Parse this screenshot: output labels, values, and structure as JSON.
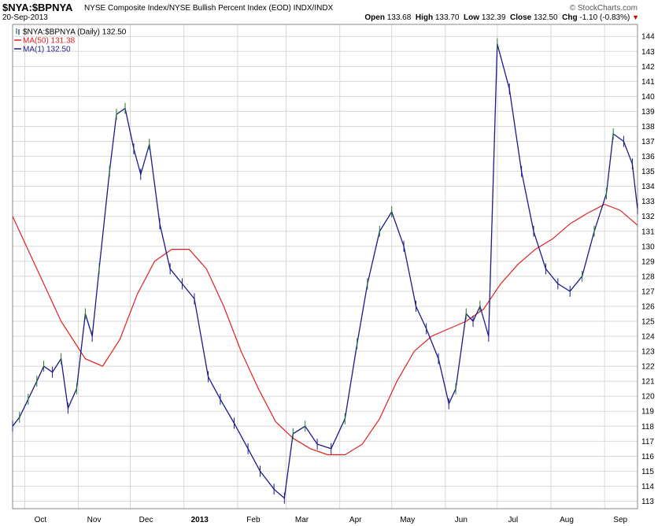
{
  "header": {
    "symbol": "$NYA:$BPNYA",
    "description": "NYSE Composite Index/NYSE Bullish Percent Index (EOD)  INDX/INDX",
    "date": "20-Sep-2013",
    "brand": "© StockCharts.com",
    "open_label": "Open",
    "open": "133.68",
    "high_label": "High",
    "high": "133.70",
    "low_label": "Low",
    "low": "132.39",
    "close_label": "Close",
    "close": "132.50",
    "chg_label": "Chg",
    "chg": "-1.10 (-0.83%)"
  },
  "colors": {
    "price": "#1a1a8c",
    "price_up": "#1e7a1e",
    "ma50": "#e02020",
    "grid": "#d8d8d8"
  },
  "chart_data": {
    "type": "line",
    "legend": [
      {
        "label": "$NYA:$BPNYA (Daily) 132.50",
        "color": "#1a1a8c",
        "icon": "ohlc-bar-icon"
      },
      {
        "label": "MA(50) 131.38",
        "color": "#e02020",
        "icon": "line-icon"
      },
      {
        "label": "MA(1) 132.50",
        "color": "#1a1a8c",
        "icon": "line-icon"
      }
    ],
    "legend_position": "top-left",
    "grid": true,
    "ylim": [
      112.5,
      144.8
    ],
    "y_ticks": [
      113,
      114,
      115,
      116,
      117,
      118,
      119,
      120,
      121,
      122,
      123,
      124,
      125,
      126,
      127,
      128,
      129,
      130,
      131,
      132,
      133,
      134,
      135,
      136,
      137,
      138,
      139,
      140,
      141,
      142,
      143,
      144
    ],
    "x_range": [
      "2012-09-24",
      "2013-09-20"
    ],
    "x_ticks": [
      {
        "label": "Oct",
        "date": "2012-10-01"
      },
      {
        "label": "Nov",
        "date": "2012-11-01"
      },
      {
        "label": "Dec",
        "date": "2012-12-01"
      },
      {
        "label": "2013",
        "date": "2013-01-01"
      },
      {
        "label": "Feb",
        "date": "2013-02-01"
      },
      {
        "label": "Mar",
        "date": "2013-03-01"
      },
      {
        "label": "Apr",
        "date": "2013-04-01"
      },
      {
        "label": "May",
        "date": "2013-05-01"
      },
      {
        "label": "Jun",
        "date": "2013-06-01"
      },
      {
        "label": "Jul",
        "date": "2013-07-01"
      },
      {
        "label": "Aug",
        "date": "2013-08-01"
      },
      {
        "label": "Sep",
        "date": "2013-09-01"
      }
    ],
    "series": [
      {
        "name": "MA(1)",
        "x": [
          "2012-09-24",
          "2012-09-28",
          "2012-10-03",
          "2012-10-08",
          "2012-10-12",
          "2012-10-17",
          "2012-10-22",
          "2012-10-26",
          "2012-10-31",
          "2012-11-05",
          "2012-11-09",
          "2012-11-13",
          "2012-11-19",
          "2012-11-23",
          "2012-11-28",
          "2012-12-03",
          "2012-12-07",
          "2012-12-12",
          "2012-12-18",
          "2012-12-24",
          "2012-12-31",
          "2013-01-07",
          "2013-01-15",
          "2013-01-22",
          "2013-01-30",
          "2013-02-07",
          "2013-02-14",
          "2013-02-22",
          "2013-02-28",
          "2013-03-05",
          "2013-03-12",
          "2013-03-19",
          "2013-03-27",
          "2013-04-04",
          "2013-04-11",
          "2013-04-17",
          "2013-04-24",
          "2013-05-01",
          "2013-05-08",
          "2013-05-15",
          "2013-05-21",
          "2013-05-28",
          "2013-06-03",
          "2013-06-07",
          "2013-06-13",
          "2013-06-17",
          "2013-06-21",
          "2013-06-26",
          "2013-07-01",
          "2013-07-08",
          "2013-07-15",
          "2013-07-22",
          "2013-07-29",
          "2013-08-05",
          "2013-08-12",
          "2013-08-19",
          "2013-08-26",
          "2013-09-02",
          "2013-09-06",
          "2013-09-12",
          "2013-09-17",
          "2013-09-20"
        ],
        "values": [
          118.0,
          118.6,
          119.8,
          121.0,
          122.0,
          121.6,
          122.5,
          119.2,
          120.5,
          125.5,
          124.0,
          128.5,
          135.0,
          138.8,
          139.2,
          136.5,
          134.8,
          136.8,
          131.5,
          128.5,
          127.5,
          126.5,
          121.3,
          119.8,
          118.2,
          116.5,
          115.0,
          113.8,
          113.2,
          117.5,
          118.0,
          116.8,
          116.5,
          118.5,
          123.5,
          127.5,
          131.0,
          132.3,
          130.0,
          126.0,
          124.5,
          122.5,
          119.5,
          120.5,
          125.5,
          125.0,
          126.0,
          124.0,
          143.5,
          140.5,
          135.0,
          131.0,
          128.5,
          127.5,
          127.0,
          128.0,
          131.0,
          133.5,
          137.5,
          137.0,
          135.5,
          132.5
        ]
      },
      {
        "name": "MA(50)",
        "x": [
          "2012-09-24",
          "2012-10-08",
          "2012-10-22",
          "2012-11-05",
          "2012-11-15",
          "2012-11-25",
          "2012-12-05",
          "2012-12-15",
          "2012-12-25",
          "2013-01-04",
          "2013-01-14",
          "2013-01-24",
          "2013-02-03",
          "2013-02-13",
          "2013-02-23",
          "2013-03-05",
          "2013-03-15",
          "2013-03-25",
          "2013-04-04",
          "2013-04-14",
          "2013-04-24",
          "2013-05-04",
          "2013-05-14",
          "2013-05-24",
          "2013-06-03",
          "2013-06-13",
          "2013-06-23",
          "2013-07-03",
          "2013-07-13",
          "2013-07-23",
          "2013-08-02",
          "2013-08-12",
          "2013-08-22",
          "2013-09-01",
          "2013-09-10",
          "2013-09-20"
        ],
        "values": [
          132.0,
          128.5,
          125.0,
          122.5,
          122.0,
          123.8,
          126.8,
          129.0,
          129.8,
          129.8,
          128.5,
          126.0,
          123.0,
          120.5,
          118.3,
          117.2,
          116.5,
          116.1,
          116.1,
          116.8,
          118.5,
          121.0,
          123.0,
          124.0,
          124.5,
          125.0,
          125.8,
          127.5,
          128.8,
          129.8,
          130.5,
          131.5,
          132.2,
          132.8,
          132.4,
          131.4
        ]
      }
    ]
  }
}
